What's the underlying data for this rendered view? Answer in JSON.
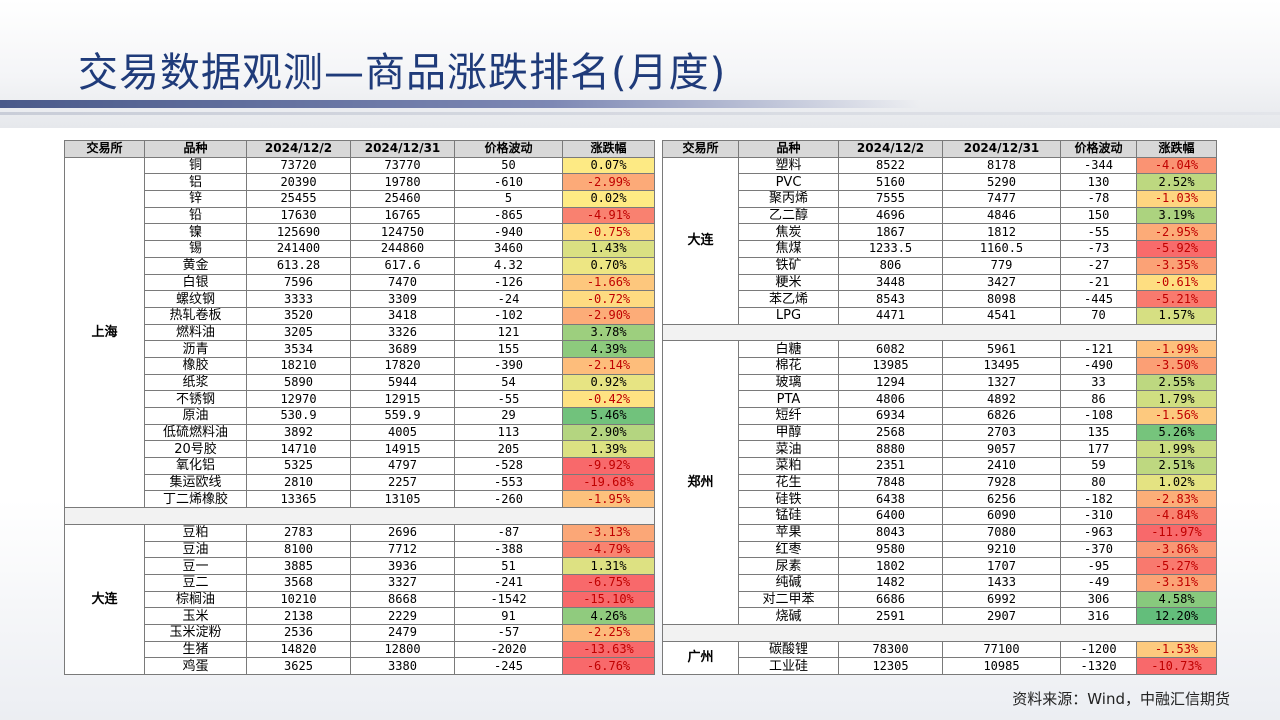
{
  "title": "交易数据观测—商品涨跌排名(月度)",
  "headers": [
    "交易所",
    "品种",
    "2024/12/2",
    "2024/12/31",
    "价格波动",
    "涨跌幅"
  ],
  "left_groups": [
    {
      "exchange": "上海",
      "rows": [
        {
          "name": "铜",
          "start": "73720",
          "end": "73770",
          "change": "50",
          "pct": "0.07%"
        },
        {
          "name": "铝",
          "start": "20390",
          "end": "19780",
          "change": "-610",
          "pct": "-2.99%"
        },
        {
          "name": "锌",
          "start": "25455",
          "end": "25460",
          "change": "5",
          "pct": "0.02%"
        },
        {
          "name": "铅",
          "start": "17630",
          "end": "16765",
          "change": "-865",
          "pct": "-4.91%"
        },
        {
          "name": "镍",
          "start": "125690",
          "end": "124750",
          "change": "-940",
          "pct": "-0.75%"
        },
        {
          "name": "锡",
          "start": "241400",
          "end": "244860",
          "change": "3460",
          "pct": "1.43%"
        },
        {
          "name": "黄金",
          "start": "613.28",
          "end": "617.6",
          "change": "4.32",
          "pct": "0.70%"
        },
        {
          "name": "白银",
          "start": "7596",
          "end": "7470",
          "change": "-126",
          "pct": "-1.66%"
        },
        {
          "name": "螺纹钢",
          "start": "3333",
          "end": "3309",
          "change": "-24",
          "pct": "-0.72%"
        },
        {
          "name": "热轧卷板",
          "start": "3520",
          "end": "3418",
          "change": "-102",
          "pct": "-2.90%"
        },
        {
          "name": "燃料油",
          "start": "3205",
          "end": "3326",
          "change": "121",
          "pct": "3.78%"
        },
        {
          "name": "沥青",
          "start": "3534",
          "end": "3689",
          "change": "155",
          "pct": "4.39%"
        },
        {
          "name": "橡胶",
          "start": "18210",
          "end": "17820",
          "change": "-390",
          "pct": "-2.14%"
        },
        {
          "name": "纸浆",
          "start": "5890",
          "end": "5944",
          "change": "54",
          "pct": "0.92%"
        },
        {
          "name": "不锈钢",
          "start": "12970",
          "end": "12915",
          "change": "-55",
          "pct": "-0.42%"
        },
        {
          "name": "原油",
          "start": "530.9",
          "end": "559.9",
          "change": "29",
          "pct": "5.46%"
        },
        {
          "name": "低硫燃料油",
          "start": "3892",
          "end": "4005",
          "change": "113",
          "pct": "2.90%"
        },
        {
          "name": "20号胶",
          "start": "14710",
          "end": "14915",
          "change": "205",
          "pct": "1.39%"
        },
        {
          "name": "氧化铝",
          "start": "5325",
          "end": "4797",
          "change": "-528",
          "pct": "-9.92%"
        },
        {
          "name": "集运欧线",
          "start": "2810",
          "end": "2257",
          "change": "-553",
          "pct": "-19.68%"
        },
        {
          "name": "丁二烯橡胶",
          "start": "13365",
          "end": "13105",
          "change": "-260",
          "pct": "-1.95%"
        }
      ]
    },
    {
      "exchange": "大连",
      "rows": [
        {
          "name": "豆粕",
          "start": "2783",
          "end": "2696",
          "change": "-87",
          "pct": "-3.13%"
        },
        {
          "name": "豆油",
          "start": "8100",
          "end": "7712",
          "change": "-388",
          "pct": "-4.79%"
        },
        {
          "name": "豆一",
          "start": "3885",
          "end": "3936",
          "change": "51",
          "pct": "1.31%"
        },
        {
          "name": "豆二",
          "start": "3568",
          "end": "3327",
          "change": "-241",
          "pct": "-6.75%"
        },
        {
          "name": "棕榈油",
          "start": "10210",
          "end": "8668",
          "change": "-1542",
          "pct": "-15.10%"
        },
        {
          "name": "玉米",
          "start": "2138",
          "end": "2229",
          "change": "91",
          "pct": "4.26%"
        },
        {
          "name": "玉米淀粉",
          "start": "2536",
          "end": "2479",
          "change": "-57",
          "pct": "-2.25%"
        },
        {
          "name": "生猪",
          "start": "14820",
          "end": "12800",
          "change": "-2020",
          "pct": "-13.63%"
        },
        {
          "name": "鸡蛋",
          "start": "3625",
          "end": "3380",
          "change": "-245",
          "pct": "-6.76%"
        }
      ]
    }
  ],
  "right_groups": [
    {
      "exchange": "大连",
      "rows": [
        {
          "name": "塑料",
          "start": "8522",
          "end": "8178",
          "change": "-344",
          "pct": "-4.04%"
        },
        {
          "name": "PVC",
          "start": "5160",
          "end": "5290",
          "change": "130",
          "pct": "2.52%"
        },
        {
          "name": "聚丙烯",
          "start": "7555",
          "end": "7477",
          "change": "-78",
          "pct": "-1.03%"
        },
        {
          "name": "乙二醇",
          "start": "4696",
          "end": "4846",
          "change": "150",
          "pct": "3.19%"
        },
        {
          "name": "焦炭",
          "start": "1867",
          "end": "1812",
          "change": "-55",
          "pct": "-2.95%"
        },
        {
          "name": "焦煤",
          "start": "1233.5",
          "end": "1160.5",
          "change": "-73",
          "pct": "-5.92%"
        },
        {
          "name": "铁矿",
          "start": "806",
          "end": "779",
          "change": "-27",
          "pct": "-3.35%"
        },
        {
          "name": "粳米",
          "start": "3448",
          "end": "3427",
          "change": "-21",
          "pct": "-0.61%"
        },
        {
          "name": "苯乙烯",
          "start": "8543",
          "end": "8098",
          "change": "-445",
          "pct": "-5.21%"
        },
        {
          "name": "LPG",
          "start": "4471",
          "end": "4541",
          "change": "70",
          "pct": "1.57%"
        }
      ]
    },
    {
      "exchange": "郑州",
      "rows": [
        {
          "name": "白糖",
          "start": "6082",
          "end": "5961",
          "change": "-121",
          "pct": "-1.99%"
        },
        {
          "name": "棉花",
          "start": "13985",
          "end": "13495",
          "change": "-490",
          "pct": "-3.50%"
        },
        {
          "name": "玻璃",
          "start": "1294",
          "end": "1327",
          "change": "33",
          "pct": "2.55%"
        },
        {
          "name": "PTA",
          "start": "4806",
          "end": "4892",
          "change": "86",
          "pct": "1.79%"
        },
        {
          "name": "短纤",
          "start": "6934",
          "end": "6826",
          "change": "-108",
          "pct": "-1.56%"
        },
        {
          "name": "甲醇",
          "start": "2568",
          "end": "2703",
          "change": "135",
          "pct": "5.26%"
        },
        {
          "name": "菜油",
          "start": "8880",
          "end": "9057",
          "change": "177",
          "pct": "1.99%"
        },
        {
          "name": "菜粕",
          "start": "2351",
          "end": "2410",
          "change": "59",
          "pct": "2.51%"
        },
        {
          "name": "花生",
          "start": "7848",
          "end": "7928",
          "change": "80",
          "pct": "1.02%"
        },
        {
          "name": "硅铁",
          "start": "6438",
          "end": "6256",
          "change": "-182",
          "pct": "-2.83%"
        },
        {
          "name": "锰硅",
          "start": "6400",
          "end": "6090",
          "change": "-310",
          "pct": "-4.84%"
        },
        {
          "name": "苹果",
          "start": "8043",
          "end": "7080",
          "change": "-963",
          "pct": "-11.97%"
        },
        {
          "name": "红枣",
          "start": "9580",
          "end": "9210",
          "change": "-370",
          "pct": "-3.86%"
        },
        {
          "name": "尿素",
          "start": "1802",
          "end": "1707",
          "change": "-95",
          "pct": "-5.27%"
        },
        {
          "name": "纯碱",
          "start": "1482",
          "end": "1433",
          "change": "-49",
          "pct": "-3.31%"
        },
        {
          "name": "对二甲苯",
          "start": "6686",
          "end": "6992",
          "change": "306",
          "pct": "4.58%"
        },
        {
          "name": "烧碱",
          "start": "2591",
          "end": "2907",
          "change": "316",
          "pct": "12.20%"
        }
      ]
    },
    {
      "exchange": "广州",
      "rows": [
        {
          "name": "碳酸锂",
          "start": "78300",
          "end": "77100",
          "change": "-1200",
          "pct": "-1.53%"
        },
        {
          "name": "工业硅",
          "start": "12305",
          "end": "10985",
          "change": "-1320",
          "pct": "-10.73%"
        }
      ]
    }
  ],
  "source": "资料来源：Wind，中融汇信期货"
}
